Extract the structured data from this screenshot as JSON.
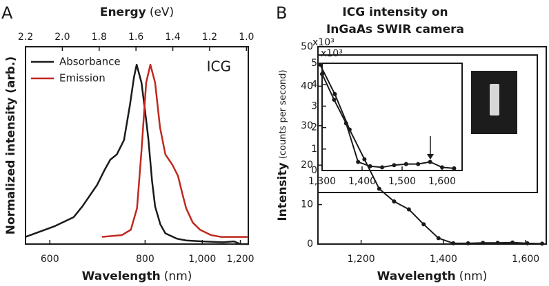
{
  "chart_data": [
    {
      "type": "line",
      "panel": "A",
      "x2label": "Energy",
      "x2unit": "(eV)",
      "xlabel": "Wavelength",
      "xunit": "(nm)",
      "ylabel": "Normalized intensity (arb.)",
      "annotation": "ICG",
      "xscale": "reciprocal",
      "xlim": [
        564,
        1252
      ],
      "xticks": [
        600,
        800,
        {
          "value": 1000,
          "label": "1,000"
        },
        {
          "value": 1200,
          "label": "1,200"
        }
      ],
      "x2lim": [
        2.2,
        0.99
      ],
      "x2ticks": [
        2.2,
        {
          "value": 2,
          "label": "2.0"
        },
        1.8,
        1.6,
        1.4,
        1.2,
        {
          "value": 1,
          "label": "1.0"
        }
      ],
      "ylim": [
        0,
        1.1
      ],
      "legend": "upper left",
      "series": [
        {
          "name": "Absorbance",
          "color": "#1a1a1a",
          "x": [
            564,
            608,
            640,
            656,
            685,
            700,
            713,
            728,
            745,
            760,
            770,
            777,
            790,
            800,
            809,
            820,
            829,
            845,
            861,
            900,
            934,
            1000,
            1100,
            1160,
            1200,
            1252
          ],
          "values": [
            0.04,
            0.1,
            0.15,
            0.21,
            0.33,
            0.41,
            0.47,
            0.5,
            0.58,
            0.78,
            0.93,
            1.0,
            0.9,
            0.74,
            0.59,
            0.35,
            0.21,
            0.11,
            0.06,
            0.03,
            0.02,
            0.015,
            0.01,
            0.015,
            0.0,
            0.0
          ]
        },
        {
          "name": "Emission",
          "color": "#c0281e",
          "x": [
            695,
            740,
            762,
            778,
            790,
            803,
            815,
            829,
            844,
            861,
            885,
            904,
            920,
            934,
            960,
            990,
            1040,
            1088,
            1150,
            1252
          ],
          "values": [
            0.04,
            0.05,
            0.08,
            0.2,
            0.52,
            0.9,
            1.0,
            0.9,
            0.65,
            0.5,
            0.44,
            0.38,
            0.28,
            0.2,
            0.12,
            0.08,
            0.05,
            0.04,
            0.04,
            0.04
          ]
        }
      ]
    },
    {
      "type": "line",
      "panel": "B",
      "markers": true,
      "title": [
        "ICG intensity on",
        "InGaAs SWIR camera"
      ],
      "xlabel": "Wavelength",
      "xunit": "(nm)",
      "ylabel": "Intensity",
      "yunit": "(counts per second)",
      "y_multiplier": "x10³",
      "xlim": [
        1095,
        1650
      ],
      "xticks": [
        {
          "value": 1200,
          "label": "1,200"
        },
        {
          "value": 1400,
          "label": "1,400"
        },
        {
          "value": 1600,
          "label": "1,600"
        }
      ],
      "ylim": [
        0,
        50
      ],
      "yticks": [
        0,
        10,
        20,
        30,
        40,
        50
      ],
      "series": [
        {
          "color": "#1a1a1a",
          "x": [
            1100,
            1136,
            1172,
            1208,
            1244,
            1280,
            1316,
            1352,
            1388,
            1424,
            1460,
            1496,
            1532,
            1568,
            1604,
            1640
          ],
          "values": [
            45.5,
            38,
            29,
            21.5,
            14,
            10.8,
            8.8,
            5,
            1.5,
            0.2,
            0.2,
            0.3,
            0.3,
            0.4,
            0.2,
            0.1
          ]
        }
      ]
    },
    {
      "type": "line",
      "markers": true,
      "inset": true,
      "y_multiplier": "x10³",
      "xlim": [
        1300,
        1650
      ],
      "xticks": [
        {
          "value": 1300,
          "label": "1,300"
        },
        {
          "value": 1400,
          "label": "1,400"
        },
        {
          "value": 1500,
          "label": "1,500"
        },
        {
          "value": 1600,
          "label": "1,600"
        }
      ],
      "ylim": [
        0,
        5
      ],
      "yticks": [
        0,
        1,
        2,
        3,
        4,
        5
      ],
      "series": [
        {
          "color": "#1a1a1a",
          "x": [
            1300,
            1330,
            1360,
            1390,
            1420,
            1450,
            1480,
            1510,
            1540,
            1570,
            1600,
            1630
          ],
          "values": [
            4.5,
            3.3,
            2.2,
            0.4,
            0.2,
            0.15,
            0.25,
            0.3,
            0.3,
            0.4,
            0.15,
            0.1
          ]
        }
      ]
    }
  ]
}
